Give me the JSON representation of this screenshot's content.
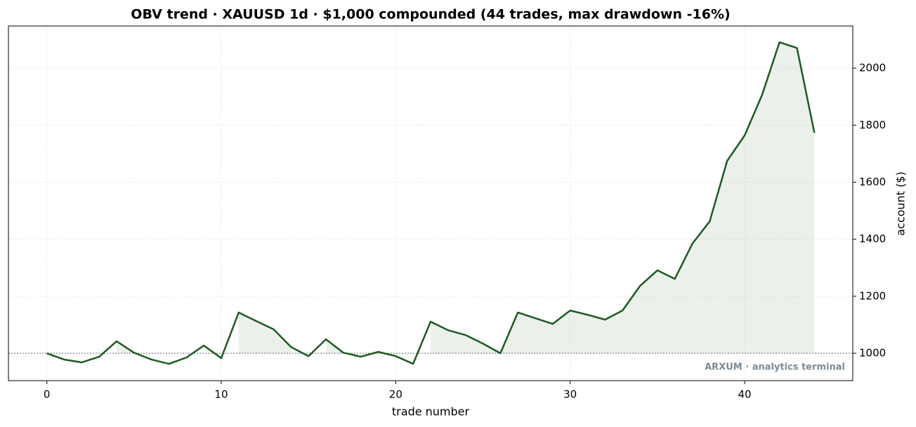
{
  "chart_data": {
    "type": "line",
    "title": "OBV trend · XAUUSD 1d · $1,000 compounded (44 trades, max drawdown -16%)",
    "xlabel": "trade number",
    "ylabel": "account ($)",
    "watermark": "ARXUM · analytics terminal",
    "x": [
      0,
      1,
      2,
      3,
      4,
      5,
      6,
      7,
      8,
      9,
      10,
      11,
      12,
      13,
      14,
      15,
      16,
      17,
      18,
      19,
      20,
      21,
      22,
      23,
      24,
      25,
      26,
      27,
      28,
      29,
      30,
      31,
      32,
      33,
      34,
      35,
      36,
      37,
      38,
      39,
      40,
      41,
      42,
      43,
      44
    ],
    "series": [
      {
        "name": "account",
        "color": "#1e5a23",
        "values": [
          1000,
          978,
          968,
          988,
          1042,
          1002,
          978,
          963,
          985,
          1027,
          983,
          1143,
          1113,
          1084,
          1022,
          990,
          1049,
          1002,
          988,
          1005,
          990,
          963,
          1111,
          1081,
          1064,
          1034,
          1000,
          1143,
          1123,
          1103,
          1150,
          1135,
          1118,
          1150,
          1236,
          1291,
          1261,
          1384,
          1463,
          1675,
          1764,
          1906,
          2091,
          2071,
          1773
        ]
      }
    ],
    "baseline": 1000,
    "xlim": [
      -2.2,
      46.2
    ],
    "ylim": [
      904,
      2148
    ],
    "xticks": [
      0,
      10,
      20,
      30,
      40
    ],
    "yticks": [
      1000,
      1200,
      1400,
      1600,
      1800,
      2000
    ],
    "grid": true,
    "y_axis_side": "right"
  }
}
